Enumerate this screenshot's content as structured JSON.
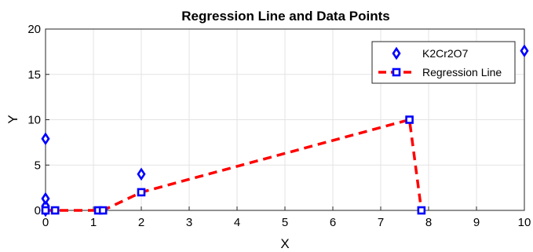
{
  "chart_data": {
    "type": "scatter",
    "title": "Regression Line and Data Points",
    "xlabel": "X",
    "ylabel": "Y",
    "xlim": [
      0,
      10
    ],
    "ylim": [
      0,
      20
    ],
    "xticks": [
      "0",
      "1",
      "2",
      "3",
      "4",
      "5",
      "6",
      "7",
      "8",
      "9",
      "10"
    ],
    "yticks": [
      "0",
      "5",
      "10",
      "15",
      "20"
    ],
    "grid": true,
    "legend_position": "top-right",
    "series": [
      {
        "name": "K2Cr2O7",
        "kind": "markers",
        "marker": "diamond",
        "color": "#0000ff",
        "points": [
          {
            "x": 0,
            "y": 0
          },
          {
            "x": 0,
            "y": 0.5
          },
          {
            "x": 0,
            "y": 1.3
          },
          {
            "x": 0,
            "y": 7.9
          },
          {
            "x": 2.0,
            "y": 4.0
          },
          {
            "x": 10.0,
            "y": 17.6
          }
        ]
      },
      {
        "name": "Regression Line",
        "kind": "line-markers",
        "marker": "square",
        "line_style": "dashed",
        "color": "#ff0000",
        "marker_color": "#0000ff",
        "points": [
          {
            "x": 0,
            "y": 0
          },
          {
            "x": 0.2,
            "y": 0
          },
          {
            "x": 1.1,
            "y": 0
          },
          {
            "x": 1.2,
            "y": 0
          },
          {
            "x": 2.0,
            "y": 2.0
          },
          {
            "x": 7.6,
            "y": 10.0
          },
          {
            "x": 7.85,
            "y": 0
          }
        ]
      }
    ]
  }
}
